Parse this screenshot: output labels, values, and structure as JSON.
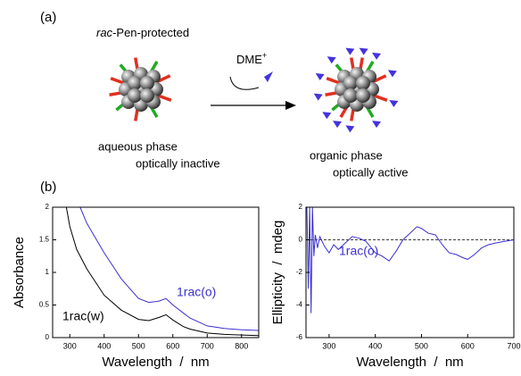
{
  "panel_a": {
    "label": "(a)",
    "title_italic": "rac",
    "title_rest": "-Pen-protected",
    "reagent": "DME",
    "reagent_charge": "+",
    "left_caption_1": "aqueous phase",
    "left_caption_2": "optically inactive",
    "right_caption_1": "organic phase",
    "right_caption_2": "optically active"
  },
  "panel_b": {
    "label": "(b)"
  },
  "chart_data": [
    {
      "type": "line",
      "xlabel": "Wavelength  /  nm",
      "ylabel": "Absorbance",
      "xlim": [
        250,
        850
      ],
      "xticks": [
        300,
        400,
        500,
        600,
        700,
        800
      ],
      "ylim": [
        0,
        2
      ],
      "yticks": [
        0,
        0.5,
        1,
        1.5,
        2
      ],
      "series": [
        {
          "name": "1rac(w)",
          "color": "#000000",
          "x": [
            290,
            300,
            320,
            350,
            400,
            450,
            500,
            530,
            560,
            580,
            600,
            630,
            650,
            700,
            750,
            800,
            850
          ],
          "values": [
            2.0,
            1.7,
            1.35,
            1.05,
            0.65,
            0.42,
            0.28,
            0.26,
            0.31,
            0.35,
            0.27,
            0.17,
            0.13,
            0.07,
            0.05,
            0.04,
            0.03
          ]
        },
        {
          "name": "1rac(o)",
          "color": "#3a2fd0",
          "x": [
            330,
            350,
            400,
            450,
            500,
            530,
            560,
            580,
            600,
            630,
            650,
            700,
            750,
            800,
            850
          ],
          "values": [
            2.0,
            1.75,
            1.3,
            0.9,
            0.6,
            0.54,
            0.56,
            0.6,
            0.5,
            0.38,
            0.3,
            0.18,
            0.14,
            0.12,
            0.11
          ]
        }
      ]
    },
    {
      "type": "line",
      "xlabel": "Wavelength  /  nm",
      "ylabel": "Ellipticity  /  mdeg",
      "xlim": [
        250,
        700
      ],
      "xticks": [
        300,
        400,
        500,
        600,
        700
      ],
      "ylim": [
        -6,
        2
      ],
      "yticks": [
        -6,
        -4,
        -2,
        0,
        2
      ],
      "reference_line": 0,
      "series": [
        {
          "name": "1rac(o)",
          "color": "#3a2fd0",
          "x": [
            252,
            255,
            258,
            261,
            264,
            267,
            270,
            275,
            280,
            290,
            300,
            310,
            320,
            335,
            350,
            365,
            380,
            400,
            415,
            430,
            445,
            460,
            475,
            490,
            500,
            515,
            530,
            545,
            560,
            575,
            590,
            600,
            615,
            630,
            645,
            660,
            680,
            700
          ],
          "values": [
            2.0,
            -3.0,
            2.0,
            -4.5,
            2.0,
            -1.0,
            0.3,
            -0.5,
            0.2,
            -0.4,
            -0.8,
            -0.3,
            -0.6,
            -0.2,
            0.2,
            0.1,
            -0.1,
            -0.8,
            -1.0,
            -1.3,
            -0.7,
            0.0,
            0.4,
            0.8,
            0.7,
            0.4,
            0.3,
            -0.3,
            -0.8,
            -0.9,
            -1.1,
            -1.2,
            -0.9,
            -0.5,
            -0.3,
            -0.2,
            -0.1,
            0.0
          ]
        }
      ]
    }
  ]
}
